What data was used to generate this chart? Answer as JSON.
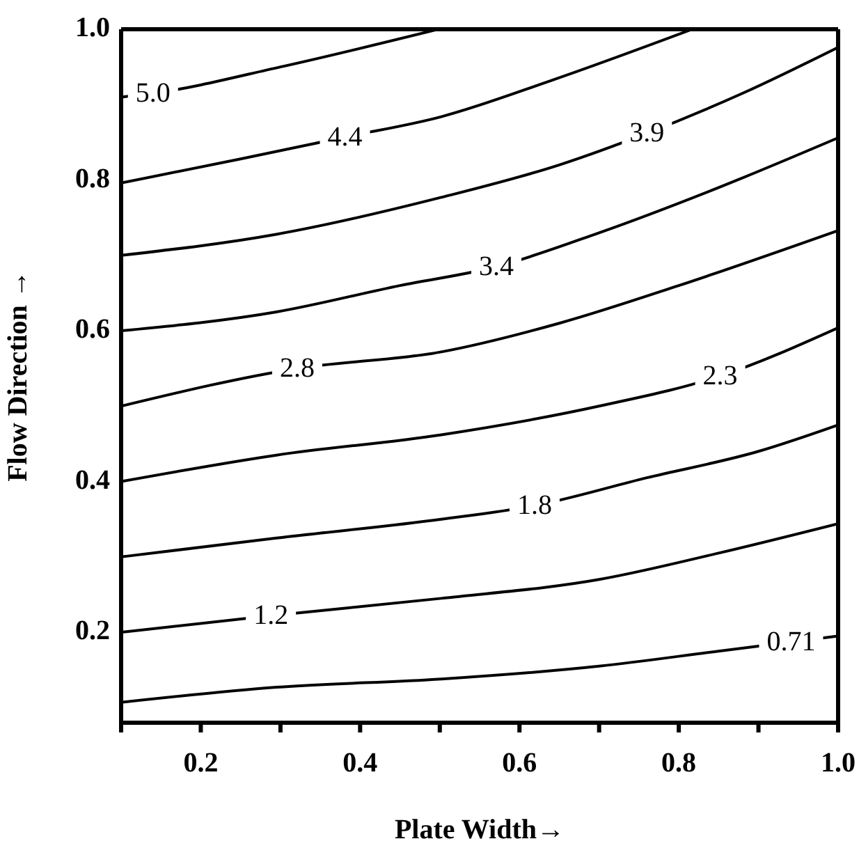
{
  "chart_data": {
    "type": "line",
    "xlabel": "Plate Width→",
    "ylabel": "Flow Direction →",
    "xlim": [
      0.1,
      1.0
    ],
    "ylim": [
      0.08,
      1.0
    ],
    "xticks": [
      {
        "value": 0.1,
        "label": null
      },
      0.2,
      {
        "value": 0.3,
        "label": null
      },
      0.4,
      {
        "value": 0.5,
        "label": null
      },
      0.6,
      {
        "value": 0.7,
        "label": null
      },
      0.8,
      {
        "value": 0.9,
        "label": null
      },
      {
        "value": 1,
        "label": "1.0"
      }
    ],
    "yticks": [
      0.2,
      0.4,
      0.6,
      0.8,
      {
        "value": 1,
        "label": "1.0"
      }
    ],
    "grid": false,
    "legend": false,
    "marker": "none",
    "line_style": "solid",
    "series": [
      {
        "color": "#000000",
        "x": [
          0.1,
          0.14,
          0.3,
          0.498
        ],
        "values": [
          0.91,
          0.915,
          0.95,
          1.0
        ]
      },
      {
        "color": "#000000",
        "x": [
          0.1,
          0.25,
          0.381,
          0.502,
          0.64,
          0.817
        ],
        "values": [
          0.796,
          0.828,
          0.857,
          0.884,
          0.932,
          1.0
        ]
      },
      {
        "color": "#000000",
        "x": [
          0.1,
          0.295,
          0.502,
          0.65,
          0.76,
          0.88,
          1.0
        ],
        "values": [
          0.7,
          0.728,
          0.777,
          0.82,
          0.862,
          0.915,
          0.976
        ]
      },
      {
        "color": "#000000",
        "x": [
          0.1,
          0.295,
          0.45,
          0.571,
          0.7,
          0.85,
          1.0
        ],
        "values": [
          0.6,
          0.625,
          0.66,
          0.685,
          0.73,
          0.79,
          0.856
        ]
      },
      {
        "color": "#000000",
        "x": [
          0.1,
          0.321,
          0.502,
          0.65,
          0.8,
          1.0
        ],
        "values": [
          0.5,
          0.55,
          0.572,
          0.61,
          0.66,
          0.733
        ]
      },
      {
        "color": "#000000",
        "x": [
          0.1,
          0.295,
          0.502,
          0.7,
          0.852,
          1.0
        ],
        "values": [
          0.4,
          0.435,
          0.462,
          0.5,
          0.54,
          0.604
        ]
      },
      {
        "color": "#000000",
        "x": [
          0.1,
          0.295,
          0.502,
          0.619,
          0.76,
          0.9,
          1.0
        ],
        "values": [
          0.3,
          0.325,
          0.35,
          0.368,
          0.405,
          0.44,
          0.475
        ]
      },
      {
        "color": "#000000",
        "x": [
          0.1,
          0.288,
          0.502,
          0.7,
          0.85,
          1.0
        ],
        "values": [
          0.2,
          0.222,
          0.245,
          0.27,
          0.305,
          0.344
        ]
      },
      {
        "color": "#000000",
        "x": [
          0.1,
          0.295,
          0.502,
          0.7,
          0.85,
          1.0
        ],
        "values": [
          0.107,
          0.127,
          0.138,
          0.155,
          0.175,
          0.195
        ]
      }
    ],
    "annotations": [
      {
        "text": "5.0",
        "x": 0.14,
        "y": 0.915
      },
      {
        "text": "4.4",
        "x": 0.381,
        "y": 0.857
      },
      {
        "text": "3.9",
        "x": 0.76,
        "y": 0.862
      },
      {
        "text": "3.4",
        "x": 0.571,
        "y": 0.685
      },
      {
        "text": "2.8",
        "x": 0.321,
        "y": 0.55
      },
      {
        "text": "2.3",
        "x": 0.852,
        "y": 0.54
      },
      {
        "text": "1.8",
        "x": 0.619,
        "y": 0.368
      },
      {
        "text": "1.2",
        "x": 0.288,
        "y": 0.222
      },
      {
        "text": "0.71",
        "x": 0.941,
        "y": 0.187
      }
    ]
  }
}
